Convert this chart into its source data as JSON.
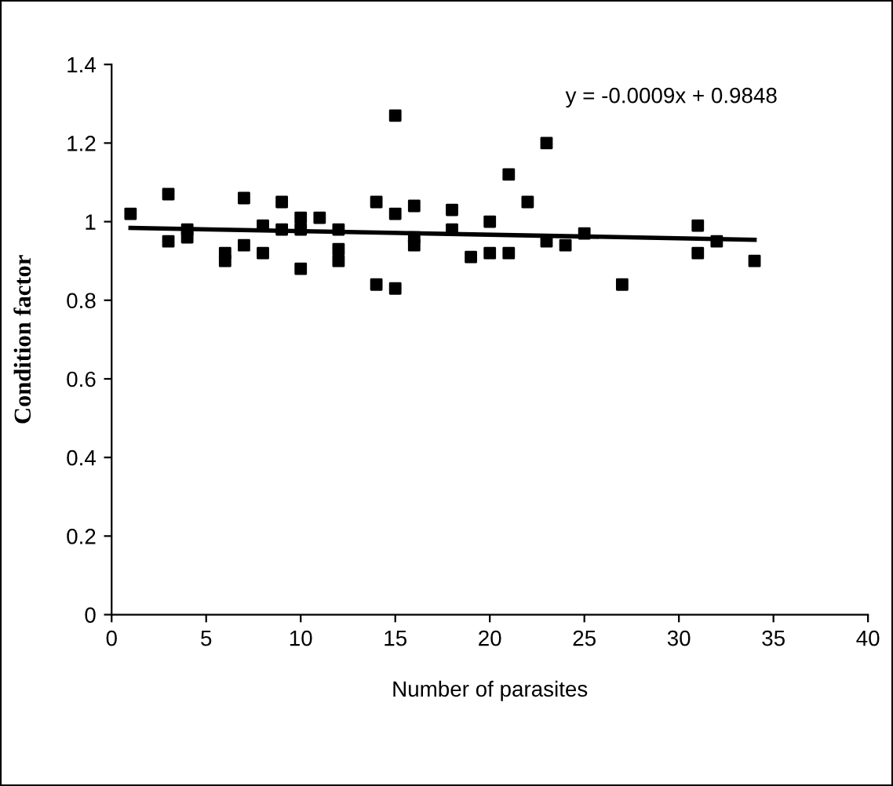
{
  "chart_data": {
    "type": "scatter",
    "xlabel": "Number of parasites",
    "ylabel": "Condition factor",
    "annotations": [
      "y = -0.0009x + 0.9848"
    ],
    "xlim": [
      0,
      40
    ],
    "xticks": [
      0,
      5,
      10,
      15,
      20,
      25,
      30,
      35,
      40
    ],
    "ylim": [
      0,
      1.4
    ],
    "yticks": [
      0,
      0.2,
      0.4,
      0.6,
      0.8,
      1,
      1.2,
      1.4
    ],
    "grid": false,
    "legend": false,
    "series": [
      {
        "color": "#000000",
        "marker": "square",
        "x": [
          1,
          3,
          3,
          4,
          4,
          6,
          6,
          7,
          7,
          8,
          8,
          9,
          9,
          10,
          10,
          10,
          11,
          12,
          12,
          12,
          14,
          14,
          15,
          15,
          15,
          16,
          16,
          16,
          18,
          18,
          19,
          20,
          20,
          21,
          21,
          22,
          23,
          23,
          24,
          25,
          27,
          31,
          31,
          32,
          34
        ],
        "values": [
          1.02,
          1.07,
          0.95,
          0.98,
          0.96,
          0.92,
          0.9,
          1.06,
          0.94,
          0.99,
          0.92,
          1.05,
          0.98,
          1.01,
          0.98,
          0.88,
          1.01,
          0.98,
          0.93,
          0.9,
          1.05,
          0.84,
          1.27,
          1.02,
          0.83,
          1.04,
          0.96,
          0.94,
          1.03,
          0.98,
          0.91,
          1.0,
          0.92,
          1.12,
          0.92,
          1.05,
          1.2,
          0.95,
          0.94,
          0.97,
          0.84,
          0.99,
          0.92,
          0.95,
          0.9
        ]
      },
      {
        "type": "line",
        "color": "#000000",
        "x": [
          1,
          34
        ],
        "values": [
          0.984,
          0.954
        ],
        "line_style": "solid"
      }
    ]
  }
}
